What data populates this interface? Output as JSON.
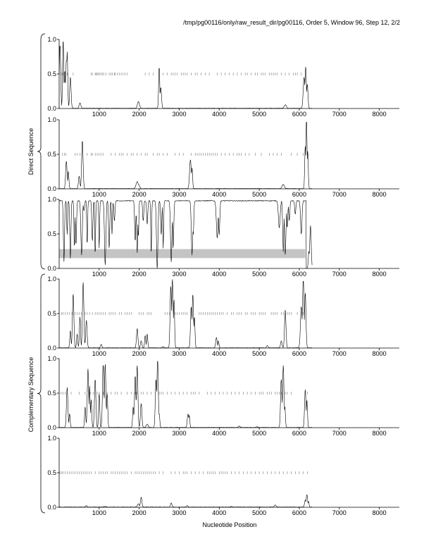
{
  "header": "/tmp/pg00116/only/raw_result_dir/pg00116, Order 5, Window 96, Step 12, 2/2",
  "group_labels": {
    "direct": "Direct Sequence",
    "complementary": "Complementary Sequence"
  },
  "chart_data": {
    "type": "line",
    "xlabel": "Nucleotide Position",
    "xlim": [
      0,
      8500
    ],
    "ylim": [
      0.0,
      1.0
    ],
    "xticks": [
      1000,
      2000,
      3000,
      4000,
      5000,
      6000,
      7000,
      8000
    ],
    "ytick_labels": [
      "0.0",
      "0.5",
      "1.0"
    ],
    "panels": [
      {
        "group": "direct",
        "peaks": [
          [
            20,
            0.92,
            25
          ],
          [
            100,
            1.0,
            20
          ],
          [
            140,
            0.55,
            20
          ],
          [
            180,
            0.7,
            25
          ],
          [
            200,
            0.82,
            20
          ],
          [
            280,
            0.45,
            25
          ],
          [
            520,
            0.08,
            30
          ],
          [
            1980,
            0.1,
            35
          ],
          [
            2500,
            0.6,
            20
          ],
          [
            2540,
            0.3,
            25
          ],
          [
            5650,
            0.05,
            40
          ],
          [
            6120,
            0.45,
            30
          ],
          [
            6160,
            0.6,
            25
          ],
          [
            6200,
            0.35,
            25
          ]
        ],
        "marks": [
          50,
          100,
          150,
          200,
          350,
          800,
          830,
          900,
          920,
          950,
          980,
          1010,
          1050,
          1080,
          1120,
          1170,
          1250,
          1290,
          1330,
          1380,
          1400,
          1450,
          1500,
          1550,
          1600,
          1650,
          1700,
          2150,
          2250,
          2350,
          2600,
          2700,
          2800,
          2850,
          2900,
          2950,
          3050,
          3100,
          3150,
          3200,
          3300,
          3400,
          3450,
          3550,
          3650,
          3750,
          3950,
          4050,
          4150,
          4250,
          4350,
          4450,
          4550,
          4650,
          4700,
          4800,
          4900,
          4950,
          5050,
          5100,
          5150,
          5250,
          5300,
          5350,
          5400,
          5450,
          5550,
          5650,
          5750,
          5850,
          5900,
          5950,
          6050
        ]
      },
      {
        "group": "direct",
        "peaks": [
          [
            180,
            0.4,
            25
          ],
          [
            230,
            0.25,
            20
          ],
          [
            500,
            0.18,
            25
          ],
          [
            580,
            0.7,
            25
          ],
          [
            1950,
            0.1,
            40
          ],
          [
            1990,
            0.06,
            30
          ],
          [
            3280,
            0.42,
            30
          ],
          [
            3320,
            0.3,
            20
          ],
          [
            5600,
            0.06,
            40
          ],
          [
            6150,
            0.62,
            20
          ],
          [
            6180,
            1.0,
            20
          ],
          [
            6210,
            0.55,
            20
          ]
        ],
        "marks": [
          80,
          130,
          170,
          400,
          450,
          520,
          700,
          800,
          830,
          900,
          950,
          1000,
          1050,
          1100,
          1300,
          1400,
          1500,
          1550,
          1600,
          1700,
          1800,
          1850,
          1950,
          2050,
          2150,
          2200,
          2350,
          2450,
          2500,
          2600,
          2700,
          2900,
          3000,
          3100,
          3300,
          3400,
          3450,
          3500,
          3550,
          3600,
          3650,
          3700,
          3750,
          3800,
          3850,
          3900,
          3950,
          4050,
          4150,
          4250,
          4350,
          4450,
          4500,
          4550,
          4650,
          4750,
          4900,
          5050,
          5250,
          5350,
          5450,
          5550,
          5800,
          5950,
          6100
        ]
      },
      {
        "group": "complementary",
        "kind": "dips",
        "base": 0.98,
        "dips": [
          [
            120,
            0.1,
            20
          ],
          [
            200,
            0.5,
            15
          ],
          [
            280,
            0.15,
            20
          ],
          [
            380,
            0.3,
            15
          ],
          [
            420,
            0.35,
            20
          ],
          [
            560,
            0.2,
            25
          ],
          [
            620,
            0.85,
            20
          ],
          [
            700,
            0.35,
            15
          ],
          [
            830,
            0.4,
            20
          ],
          [
            900,
            0.2,
            15
          ],
          [
            1000,
            0.3,
            15
          ],
          [
            1150,
            0.05,
            25
          ],
          [
            1250,
            0.3,
            20
          ],
          [
            1320,
            0.5,
            15
          ],
          [
            1380,
            0.7,
            20
          ],
          [
            1900,
            0.4,
            20
          ],
          [
            1950,
            0.22,
            20
          ],
          [
            1980,
            0.45,
            15
          ],
          [
            2100,
            0.7,
            20
          ],
          [
            2200,
            0.65,
            20
          ],
          [
            2300,
            0.2,
            15
          ],
          [
            2450,
            0.0,
            25
          ],
          [
            2550,
            0.5,
            20
          ],
          [
            2600,
            0.3,
            15
          ],
          [
            2800,
            0.1,
            25
          ],
          [
            2850,
            0.3,
            20
          ],
          [
            3320,
            0.2,
            25
          ],
          [
            3350,
            0.5,
            20
          ],
          [
            3950,
            0.45,
            30
          ],
          [
            4000,
            0.5,
            20
          ],
          [
            5500,
            0.6,
            30
          ],
          [
            5600,
            0.25,
            20
          ],
          [
            5650,
            0.2,
            25
          ],
          [
            5700,
            0.6,
            20
          ],
          [
            5750,
            0.7,
            20
          ],
          [
            5900,
            0.8,
            20
          ],
          [
            6050,
            0.5,
            25
          ]
        ],
        "tail_peaks": [
          [
            6240,
            0.25,
            20
          ],
          [
            6280,
            0.62,
            25
          ]
        ],
        "band": {
          "x0": 0,
          "x1": 6150,
          "y0": 0.15,
          "y1": 0.28
        }
      },
      {
        "group": "complementary",
        "peaks": [
          [
            280,
            0.25,
            20
          ],
          [
            350,
            0.78,
            25
          ],
          [
            450,
            0.2,
            20
          ],
          [
            520,
            0.45,
            20
          ],
          [
            600,
            0.95,
            25
          ],
          [
            680,
            0.4,
            25
          ],
          [
            1050,
            0.05,
            25
          ],
          [
            1950,
            0.28,
            25
          ],
          [
            2050,
            0.1,
            25
          ],
          [
            2150,
            0.18,
            20
          ],
          [
            2200,
            0.2,
            20
          ],
          [
            2600,
            0.02,
            20
          ],
          [
            2790,
            0.9,
            25
          ],
          [
            2830,
            1.0,
            25
          ],
          [
            2870,
            0.7,
            20
          ],
          [
            3300,
            0.6,
            25
          ],
          [
            3340,
            0.78,
            25
          ],
          [
            3380,
            0.45,
            20
          ],
          [
            3930,
            0.15,
            25
          ],
          [
            3980,
            0.1,
            20
          ],
          [
            5200,
            0.03,
            30
          ],
          [
            5550,
            0.1,
            25
          ],
          [
            5650,
            0.55,
            25
          ],
          [
            6050,
            0.6,
            30
          ],
          [
            6100,
            0.98,
            30
          ],
          [
            6150,
            0.8,
            25
          ]
        ],
        "marks": [
          60,
          100,
          150,
          200,
          250,
          320,
          400,
          450,
          500,
          550,
          650,
          700,
          760,
          830,
          900,
          950,
          1000,
          1050,
          1100,
          1150,
          1250,
          1300,
          1350,
          1400,
          1500,
          1560,
          1650,
          1700,
          1750,
          1800,
          2000,
          2050,
          2100,
          2200,
          2250,
          2300,
          2650,
          2700,
          2750,
          2900,
          2950,
          3000,
          3050,
          3100,
          3150,
          3200,
          3500,
          3550,
          3600,
          3650,
          3700,
          3750,
          3800,
          3850,
          3900,
          3950,
          4000,
          4050,
          4100,
          4200,
          4300,
          4350,
          4450,
          4500,
          4550,
          4650,
          4700,
          4800,
          4850,
          4900,
          5000,
          5050,
          5100,
          5150,
          5300,
          5350,
          5400,
          5450,
          5550,
          5600,
          5650,
          5700,
          5750,
          5800,
          5950,
          6100
        ]
      },
      {
        "group": "complementary",
        "peaks": [
          [
            200,
            0.58,
            25
          ],
          [
            260,
            0.2,
            20
          ],
          [
            650,
            0.3,
            20
          ],
          [
            720,
            0.85,
            25
          ],
          [
            760,
            0.6,
            20
          ],
          [
            800,
            0.4,
            20
          ],
          [
            900,
            0.7,
            25
          ],
          [
            1000,
            0.5,
            20
          ],
          [
            1100,
            0.92,
            25
          ],
          [
            1150,
            0.92,
            25
          ],
          [
            1200,
            0.5,
            20
          ],
          [
            1850,
            0.3,
            20
          ],
          [
            1900,
            0.75,
            25
          ],
          [
            1950,
            0.9,
            25
          ],
          [
            2050,
            0.35,
            25
          ],
          [
            2200,
            0.05,
            30
          ],
          [
            2420,
            0.7,
            25
          ],
          [
            2460,
            0.98,
            25
          ],
          [
            2500,
            0.2,
            20
          ],
          [
            3220,
            0.2,
            25
          ],
          [
            3250,
            0.18,
            20
          ],
          [
            4500,
            0.02,
            30
          ],
          [
            4950,
            0.01,
            30
          ],
          [
            5550,
            0.7,
            25
          ],
          [
            5600,
            0.9,
            25
          ],
          [
            5640,
            0.3,
            20
          ],
          [
            6150,
            0.55,
            25
          ],
          [
            6190,
            0.4,
            20
          ]
        ],
        "marks": [
          50,
          100,
          150,
          200,
          300,
          500,
          650,
          700,
          780,
          850,
          950,
          1000,
          1100,
          1200,
          1300,
          1400,
          1450,
          1550,
          1700,
          1800,
          1900,
          1950,
          2050,
          2100,
          2200,
          2300,
          2400,
          2500,
          2550,
          2600,
          2700,
          2800,
          2900,
          3000,
          3100,
          3200,
          3300,
          3350,
          3400,
          3500,
          3700,
          3800,
          3900,
          4000,
          4100,
          4200,
          4300,
          4400,
          4500,
          4600,
          4700,
          4800,
          4900,
          5000,
          5050,
          5100,
          5200,
          5250,
          5300,
          5400,
          5450,
          5500,
          5550,
          5650,
          5700,
          5800,
          6200
        ]
      },
      {
        "group": "complementary",
        "peaks": [
          [
            680,
            0.02,
            30
          ],
          [
            1150,
            0.01,
            30
          ],
          [
            1980,
            0.05,
            30
          ],
          [
            2050,
            0.14,
            25
          ],
          [
            2800,
            0.06,
            25
          ],
          [
            3200,
            0.02,
            25
          ],
          [
            4300,
            0.01,
            30
          ],
          [
            5400,
            0.03,
            30
          ],
          [
            6150,
            0.1,
            25
          ],
          [
            6190,
            0.18,
            25
          ],
          [
            6230,
            0.08,
            20
          ]
        ],
        "marks": [
          20,
          60,
          100,
          150,
          200,
          250,
          300,
          350,
          400,
          450,
          500,
          550,
          600,
          650,
          700,
          750,
          800,
          900,
          1000,
          1050,
          1100,
          1150,
          1200,
          1300,
          1350,
          1400,
          1450,
          1500,
          1550,
          1600,
          1650,
          1700,
          1800,
          1900,
          1950,
          2000,
          2050,
          2100,
          2150,
          2200,
          2250,
          2300,
          2350,
          2400,
          2500,
          2600,
          2800,
          2900,
          3000,
          3100,
          3150,
          3200,
          3300,
          3400,
          3500,
          3600,
          3700,
          3750,
          3800,
          3850,
          3900,
          4000,
          4050,
          4100,
          4150,
          4200,
          4300,
          4400,
          4500,
          4600,
          4700,
          4800,
          4900,
          5000,
          5100,
          5200,
          5300,
          5400,
          5500,
          5600,
          5700,
          5800,
          5900,
          6000,
          6100,
          6200
        ]
      }
    ]
  }
}
